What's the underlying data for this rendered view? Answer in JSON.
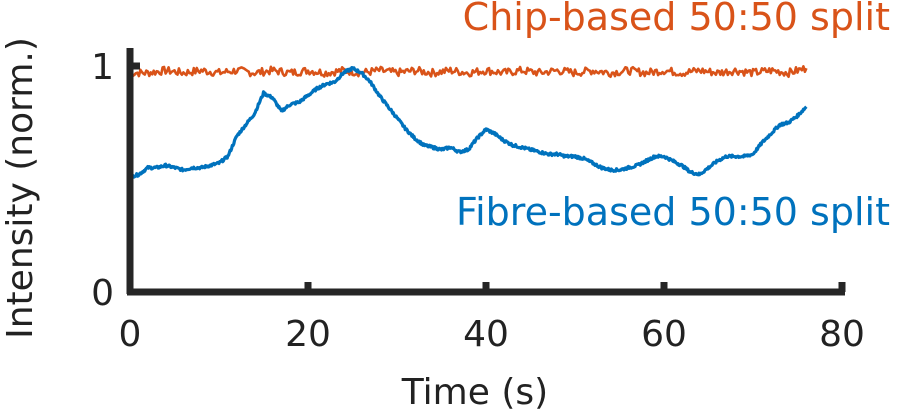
{
  "chart_data": {
    "type": "line",
    "xlabel": "Time (s)",
    "ylabel": "Intensity (norm.)",
    "xlim": [
      0,
      80
    ],
    "ylim": [
      0,
      1
    ],
    "x_ticks": [
      0,
      20,
      40,
      60,
      80
    ],
    "y_ticks": [
      0,
      1
    ],
    "grid": false,
    "legend": "none (series labelled inline)",
    "series": [
      {
        "name": "Chip-based 50:50 split",
        "color": "#D95319",
        "x": [
          0,
          2,
          4,
          6,
          8,
          10,
          12,
          14,
          16,
          18,
          20,
          22,
          24,
          26,
          28,
          30,
          32,
          34,
          36,
          38,
          40,
          42,
          44,
          46,
          48,
          50,
          52,
          54,
          56,
          58,
          60,
          62,
          64,
          66,
          68,
          70,
          72,
          74,
          76
        ],
        "y": [
          0.97,
          0.97,
          0.98,
          0.97,
          0.98,
          0.97,
          0.98,
          0.97,
          0.98,
          0.97,
          0.98,
          0.97,
          0.98,
          0.97,
          0.98,
          0.97,
          0.98,
          0.97,
          0.98,
          0.97,
          0.98,
          0.97,
          0.98,
          0.97,
          0.98,
          0.97,
          0.98,
          0.97,
          0.98,
          0.97,
          0.98,
          0.97,
          0.98,
          0.97,
          0.98,
          0.97,
          0.98,
          0.97,
          0.99
        ]
      },
      {
        "name": "Fibre-based 50:50 split",
        "color": "#0072BD",
        "x": [
          0,
          1,
          2,
          3,
          4,
          5,
          6,
          7,
          8,
          9,
          10,
          11,
          12,
          13,
          14,
          15,
          16,
          17,
          18,
          19,
          20,
          21,
          22,
          23,
          24,
          25,
          26,
          27,
          28,
          29,
          30,
          31,
          32,
          33,
          34,
          35,
          36,
          37,
          38,
          39,
          40,
          41,
          42,
          43,
          44,
          45,
          46,
          47,
          48,
          49,
          50,
          51,
          52,
          53,
          54,
          55,
          56,
          57,
          58,
          59,
          60,
          61,
          62,
          63,
          64,
          65,
          66,
          67,
          68,
          69,
          70,
          71,
          72,
          73,
          74,
          75,
          76
        ],
        "y": [
          0.51,
          0.52,
          0.55,
          0.55,
          0.56,
          0.55,
          0.54,
          0.55,
          0.55,
          0.56,
          0.57,
          0.6,
          0.69,
          0.74,
          0.79,
          0.88,
          0.86,
          0.8,
          0.83,
          0.84,
          0.87,
          0.9,
          0.92,
          0.93,
          0.97,
          0.99,
          0.97,
          0.93,
          0.87,
          0.82,
          0.77,
          0.72,
          0.68,
          0.65,
          0.64,
          0.63,
          0.64,
          0.62,
          0.63,
          0.68,
          0.72,
          0.7,
          0.67,
          0.65,
          0.64,
          0.63,
          0.62,
          0.61,
          0.61,
          0.6,
          0.6,
          0.59,
          0.57,
          0.55,
          0.54,
          0.54,
          0.55,
          0.56,
          0.58,
          0.6,
          0.6,
          0.58,
          0.56,
          0.53,
          0.52,
          0.55,
          0.58,
          0.6,
          0.6,
          0.6,
          0.61,
          0.66,
          0.7,
          0.74,
          0.75,
          0.78,
          0.82
        ]
      }
    ]
  }
}
